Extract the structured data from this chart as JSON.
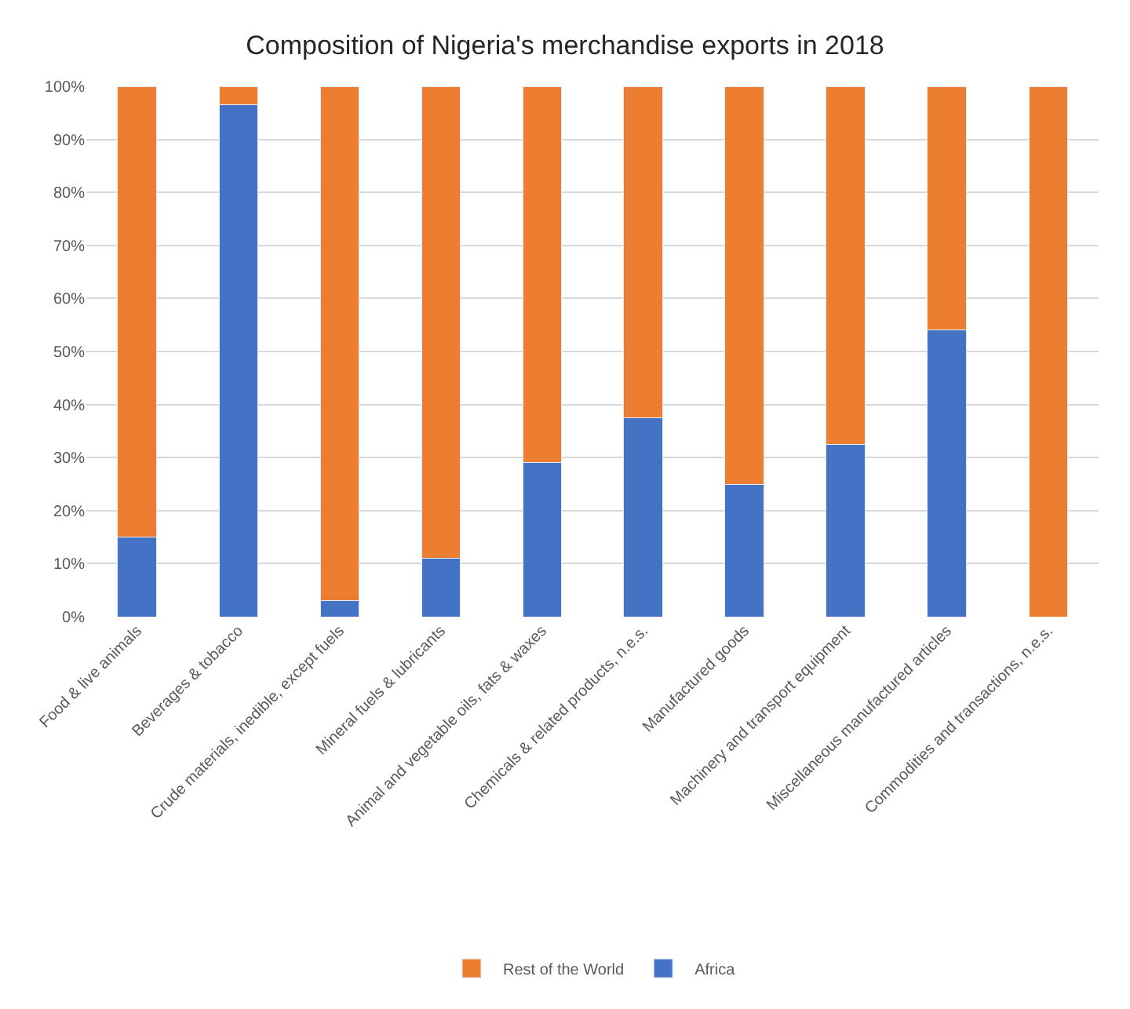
{
  "chart_data": {
    "type": "bar",
    "title": "Composition of Nigeria's merchandise exports in 2018",
    "stacked": true,
    "categories": [
      "Food & live animals",
      "Beverages & tobacco",
      "Crude materials, inedible, except fuels",
      "Mineral fuels & lubricants",
      "Animal and vegetable oils, fats & waxes",
      "Chemicals & related products, n.e.s.",
      "Manufactured goods",
      "Machinery and transport equipment",
      "Miscellaneous manufactured articles",
      "Commodities and transactions, n.e.s."
    ],
    "series": [
      {
        "name": "Africa",
        "color": "#4472c4",
        "values": [
          15,
          96.5,
          3,
          11,
          29,
          37.5,
          25,
          32.5,
          54,
          0
        ]
      },
      {
        "name": "Rest of the World",
        "color": "#ed7d31",
        "values": [
          85,
          3.5,
          97,
          89,
          71,
          62.5,
          75,
          67.5,
          46,
          100
        ]
      }
    ],
    "ylim": [
      0,
      100
    ],
    "yticks": [
      {
        "value": 0,
        "label": "0%"
      },
      {
        "value": 10,
        "label": "10%"
      },
      {
        "value": 20,
        "label": "20%"
      },
      {
        "value": 30,
        "label": "30%"
      },
      {
        "value": 40,
        "label": "40%"
      },
      {
        "value": 50,
        "label": "50%"
      },
      {
        "value": 60,
        "label": "60%"
      },
      {
        "value": 70,
        "label": "70%"
      },
      {
        "value": 80,
        "label": "80%"
      },
      {
        "value": 90,
        "label": "90%"
      },
      {
        "value": 100,
        "label": "100%"
      }
    ],
    "grid": "y",
    "legend": "bottom"
  }
}
